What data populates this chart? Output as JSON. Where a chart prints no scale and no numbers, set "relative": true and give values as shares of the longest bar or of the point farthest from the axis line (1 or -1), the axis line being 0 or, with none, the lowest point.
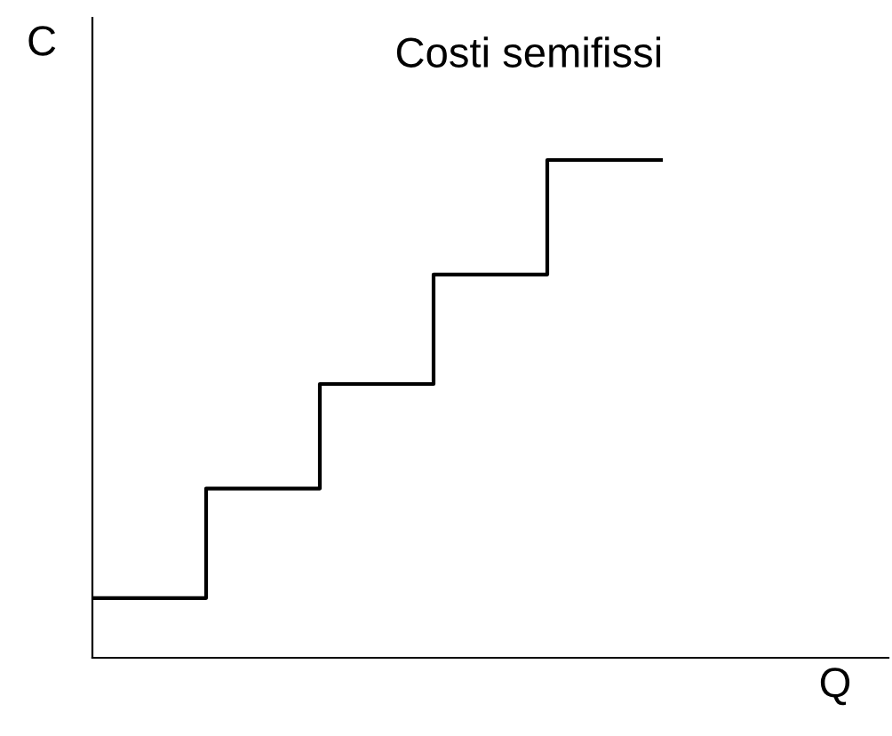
{
  "chart_data": {
    "type": "step",
    "title": "Costi semifissi",
    "xlabel": "Q",
    "ylabel": "C",
    "relative": true,
    "categories": [
      null,
      null,
      null,
      null,
      null,
      null
    ],
    "series": [
      {
        "color": "#000000",
        "values": [
          0.12,
          0.34,
          0.55,
          0.77,
          1.0,
          1.0
        ]
      }
    ],
    "grid": false,
    "legend": false,
    "marker": "none",
    "line_style": "solid"
  }
}
